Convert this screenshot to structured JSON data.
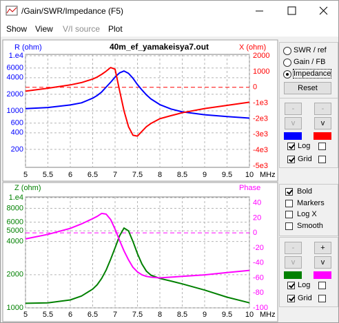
{
  "window": {
    "title": "/Gain/SWR/Impedance (F5)"
  },
  "menu": [
    {
      "label": "Show",
      "enabled": true
    },
    {
      "label": "View",
      "enabled": true
    },
    {
      "label": "V/I source",
      "enabled": false
    },
    {
      "label": "Plot",
      "enabled": true
    }
  ],
  "chart_data": [
    {
      "type": "line",
      "title": "40m_ef_yamakeisya7.out",
      "x_label": "MHz",
      "x": [
        5,
        5.5,
        6,
        6.25,
        6.5,
        6.6,
        6.7,
        6.8,
        6.9,
        7,
        7.1,
        7.2,
        7.3,
        7.4,
        7.5,
        7.6,
        7.7,
        7.8,
        8,
        8.25,
        8.5,
        9,
        9.5,
        10
      ],
      "xlim": [
        5,
        10
      ],
      "xticks": [
        5,
        5.5,
        6,
        6.5,
        7,
        7.5,
        8,
        8.5,
        9,
        9.5,
        10
      ],
      "ylim": [
        100,
        10000
      ],
      "log_y": true,
      "yticks": [
        {
          "value": 10000,
          "label": "1.e4"
        },
        6000,
        4000,
        2000,
        1000,
        600,
        400,
        200
      ],
      "y2lim": [
        -5000,
        2000
      ],
      "y2ticks": [
        2000,
        1000,
        0,
        {
          "value": -1000,
          "label": "-1e3"
        },
        {
          "value": -2000,
          "label": "-2e3"
        },
        {
          "value": -3000,
          "label": "-3e3"
        },
        {
          "value": -4000,
          "label": "-4e3"
        },
        {
          "value": -5000,
          "label": "-5e3"
        }
      ],
      "grid": true,
      "series": [
        {
          "name": "R (ohm)",
          "color": "#0000ff",
          "axis": "y",
          "values": [
            1100,
            1150,
            1280,
            1400,
            1700,
            1900,
            2200,
            2700,
            3300,
            4100,
            4900,
            5300,
            4800,
            3900,
            3000,
            2400,
            1950,
            1650,
            1300,
            1080,
            960,
            850,
            790,
            740
          ]
        },
        {
          "name": "X (ohm)",
          "color": "#ff0000",
          "axis": "y2",
          "values": [
            -250,
            -60,
            150,
            300,
            520,
            650,
            820,
            1020,
            1250,
            1150,
            -200,
            -1500,
            -2500,
            -3050,
            -3100,
            -2800,
            -2500,
            -2300,
            -2000,
            -1800,
            -1620,
            -1350,
            -1150,
            -950
          ]
        }
      ]
    },
    {
      "type": "line",
      "x_label": "MHz",
      "x": [
        5,
        5.5,
        6,
        6.25,
        6.5,
        6.6,
        6.7,
        6.8,
        6.9,
        7,
        7.1,
        7.2,
        7.3,
        7.4,
        7.5,
        7.6,
        7.7,
        7.8,
        8,
        8.25,
        8.5,
        9,
        9.5,
        10
      ],
      "xlim": [
        5,
        10
      ],
      "xticks": [
        5,
        5.5,
        6,
        6.5,
        7,
        7.5,
        8,
        8.5,
        9,
        9.5,
        10
      ],
      "ylim": [
        1000,
        10000
      ],
      "log_y": true,
      "yticks": [
        {
          "value": 10000,
          "label": "1.e4"
        },
        8000,
        6000,
        5000,
        4000,
        2000,
        1000
      ],
      "y2lim": [
        -100,
        47
      ],
      "y2ticks": [
        40,
        20,
        0,
        -20,
        -40,
        -60,
        -80,
        -100
      ],
      "grid": true,
      "series": [
        {
          "name": "Z (ohm)",
          "color": "#008000",
          "axis": "y",
          "values": [
            1100,
            1110,
            1180,
            1280,
            1480,
            1620,
            1850,
            2200,
            2750,
            3500,
            4500,
            5300,
            5000,
            4000,
            3100,
            2500,
            2150,
            1980,
            1850,
            1750,
            1650,
            1450,
            1250,
            1110
          ]
        },
        {
          "name": "Phase",
          "color": "#ff00ff",
          "axis": "y2",
          "values": [
            -8,
            -2,
            6,
            12,
            19,
            22,
            26,
            25,
            18,
            5,
            -10,
            -24,
            -36,
            -46,
            -52,
            -56,
            -58,
            -59,
            -60,
            -59,
            -58,
            -56,
            -53,
            -50
          ]
        }
      ]
    }
  ],
  "panel_top": {
    "modes": [
      {
        "label": "SWR / ref",
        "checked": false
      },
      {
        "label": "Gain / FB",
        "checked": false
      },
      {
        "label": "Impedance",
        "checked": true
      }
    ],
    "reset": "Reset",
    "buttons": [
      {
        "label": "-",
        "enabled": false
      },
      {
        "label": "-",
        "enabled": false
      },
      {
        "label": "v",
        "enabled": false
      },
      {
        "label": "v",
        "enabled": true
      }
    ],
    "checks": [
      {
        "label": "Log",
        "left": true,
        "right": false
      },
      {
        "label": "Grid",
        "left": true,
        "right": false
      }
    ]
  },
  "panel_bottom": {
    "options": [
      {
        "label": "Bold",
        "checked": true
      },
      {
        "label": "Markers",
        "checked": false
      },
      {
        "label": "Log X",
        "checked": false
      },
      {
        "label": "Smooth",
        "checked": false
      }
    ],
    "buttons": [
      {
        "label": "-",
        "enabled": false
      },
      {
        "label": "+",
        "enabled": true
      },
      {
        "label": "v",
        "enabled": false
      },
      {
        "label": "v",
        "enabled": true
      }
    ],
    "checks": [
      {
        "label": "Log",
        "left": true,
        "right": false
      },
      {
        "label": "Grid",
        "left": true,
        "right": false
      }
    ]
  }
}
